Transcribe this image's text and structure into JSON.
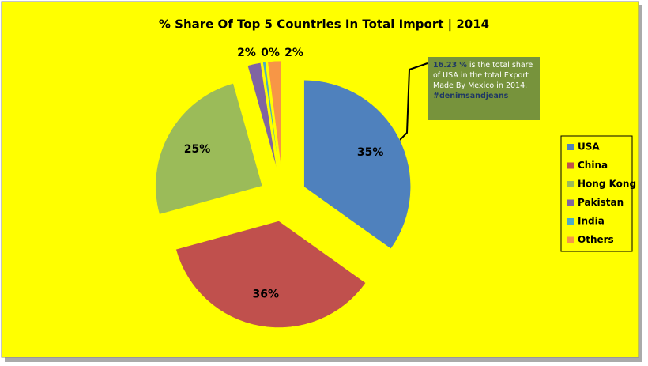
{
  "chart_data": {
    "type": "pie",
    "title": "% Share Of Top 5 Countries In Total Import | 2014",
    "categories": [
      "USA",
      "China",
      "Hong Kong",
      "Pakistan",
      "India",
      "Others"
    ],
    "values": [
      35,
      36,
      25,
      2,
      0.4,
      2
    ],
    "value_labels": [
      "35%",
      "36%",
      "25%",
      "2%",
      "0%",
      "2%"
    ],
    "colors": [
      "#4f81bd",
      "#c0504d",
      "#9bbb59",
      "#8064a2",
      "#4bacc6",
      "#f79646"
    ],
    "legend": "right",
    "annotation": {
      "highlight": "16.23 %",
      "text": " is the total share of USA in the total Export Made By Mexico in 2014.",
      "tag": "#denimsandjeans"
    }
  }
}
